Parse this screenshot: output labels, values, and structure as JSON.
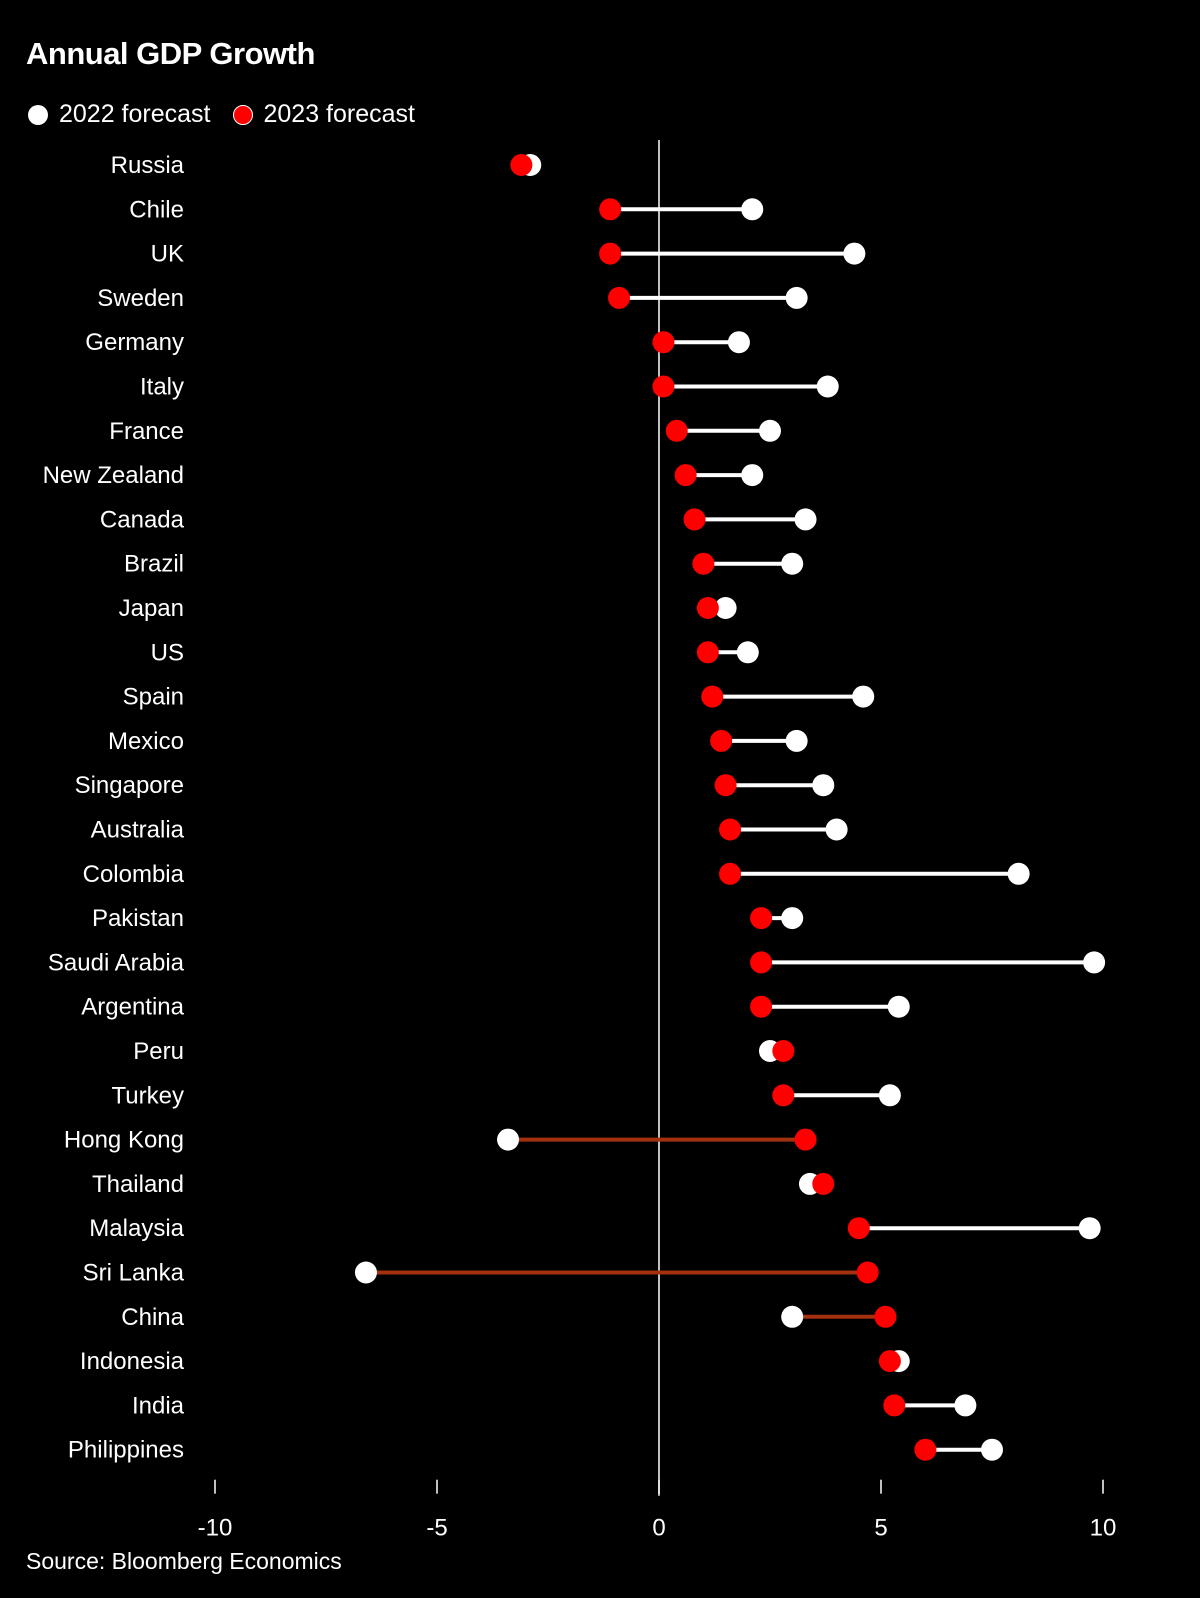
{
  "title": "Annual GDP Growth",
  "legend": [
    {
      "label": "2022 forecast",
      "color": "#ffffff"
    },
    {
      "label": "2023 forecast",
      "color": "#ff0000"
    }
  ],
  "source": "Source: Bloomberg Economics",
  "chart_data": {
    "type": "dumbbell",
    "title": "Annual GDP Growth",
    "xlabel": "",
    "ylabel": "",
    "xlim": [
      -10,
      10
    ],
    "xticks": [
      -10,
      -5,
      0,
      5,
      10
    ],
    "xtick_labels": [
      "-10",
      "-5",
      "0",
      "5",
      "10"
    ],
    "grid": false,
    "legend_position": "top-left",
    "categories": [
      "Russia",
      "Chile",
      "UK",
      "Sweden",
      "Germany",
      "Italy",
      "France",
      "New Zealand",
      "Canada",
      "Brazil",
      "Japan",
      "US",
      "Spain",
      "Mexico",
      "Singapore",
      "Australia",
      "Colombia",
      "Pakistan",
      "Saudi Arabia",
      "Argentina",
      "Peru",
      "Turkey",
      "Hong Kong",
      "Thailand",
      "Malaysia",
      "Sri Lanka",
      "China",
      "Indonesia",
      "India",
      "Philippines"
    ],
    "series": [
      {
        "name": "2022 forecast",
        "color": "#ffffff",
        "values": [
          -2.9,
          2.1,
          4.4,
          3.1,
          1.8,
          3.8,
          2.5,
          2.1,
          3.3,
          3.0,
          1.5,
          2.0,
          4.6,
          3.1,
          3.7,
          4.0,
          8.1,
          3.0,
          9.8,
          5.4,
          2.5,
          5.2,
          -3.4,
          3.4,
          9.7,
          -6.6,
          3.0,
          5.4,
          6.9,
          7.5
        ]
      },
      {
        "name": "2023 forecast",
        "color": "#ff0000",
        "values": [
          -3.1,
          -1.1,
          -1.1,
          -0.9,
          0.1,
          0.1,
          0.4,
          0.6,
          0.8,
          1.0,
          1.1,
          1.1,
          1.2,
          1.4,
          1.5,
          1.6,
          1.6,
          2.3,
          2.3,
          2.3,
          2.8,
          2.8,
          3.3,
          3.7,
          4.5,
          4.7,
          5.1,
          5.2,
          5.3,
          6.0
        ]
      }
    ]
  }
}
